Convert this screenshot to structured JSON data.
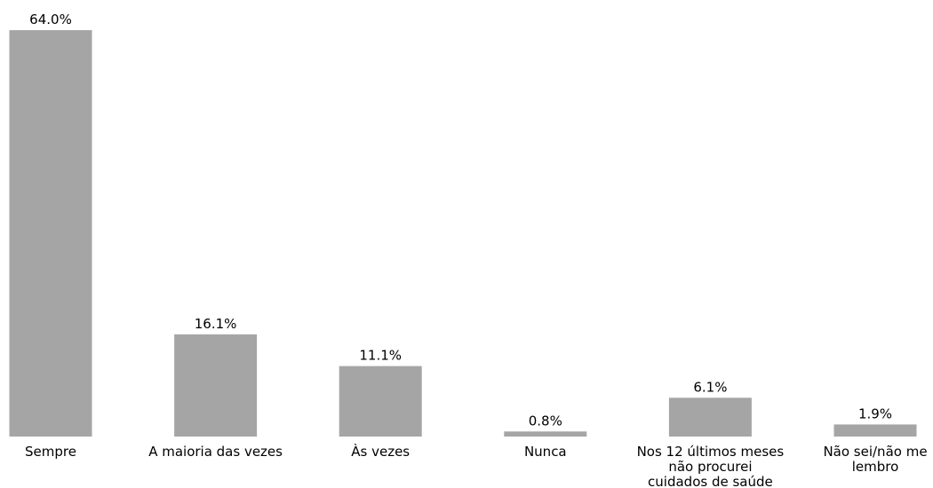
{
  "chart_data": {
    "type": "bar",
    "title": "",
    "xlabel": "",
    "ylabel": "",
    "categories": [
      [
        "Sempre"
      ],
      [
        "A maioria das vezes"
      ],
      [
        "Às vezes"
      ],
      [
        "Nunca"
      ],
      [
        "Nos 12 últimos meses",
        "não procurei",
        "cuidados de saúde"
      ],
      [
        "Não sei/não me",
        "lembro"
      ]
    ],
    "values": [
      64.0,
      16.1,
      11.1,
      0.8,
      6.1,
      1.9
    ],
    "value_labels": [
      "64.0%",
      "16.1%",
      "11.1%",
      "0.8%",
      "6.1%",
      "1.9%"
    ],
    "ylim": [
      0,
      64.0
    ],
    "grid": false,
    "legend": "none",
    "axes_visible": false,
    "bar_color": "#a5a5a5"
  }
}
